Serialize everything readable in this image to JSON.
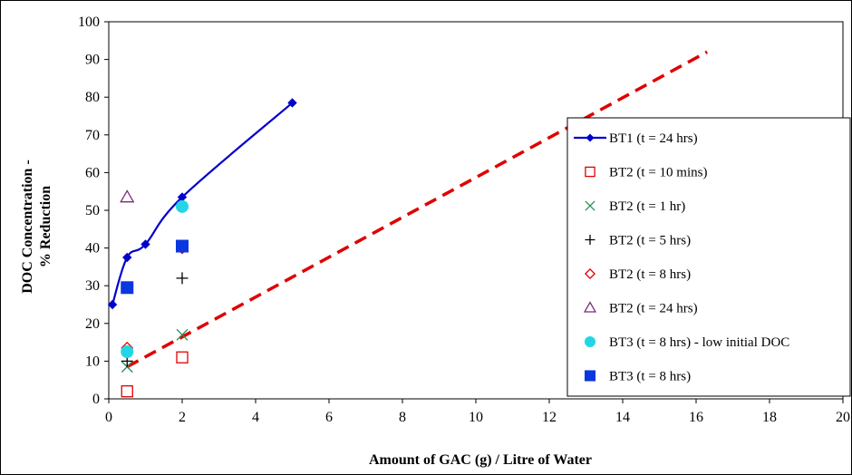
{
  "chart_data": {
    "type": "scatter",
    "title": "",
    "xlabel": "Amount of GAC (g) / Litre of Water",
    "ylabel_lines": [
      "DOC Concentration -",
      "% Reduction"
    ],
    "xlim": [
      0,
      20
    ],
    "ylim": [
      0,
      100
    ],
    "x_ticks": [
      0,
      2,
      4,
      6,
      8,
      10,
      12,
      14,
      16,
      18,
      20
    ],
    "y_ticks": [
      0,
      10,
      20,
      30,
      40,
      50,
      60,
      70,
      80,
      90,
      100
    ],
    "grid": false,
    "legend_position": "right",
    "series": [
      {
        "name": "BT1 (t = 24 hrs)",
        "marker": "diamond-filled",
        "line": "smooth-solid",
        "color": "#0000cc",
        "x": [
          0.1,
          0.5,
          1,
          2,
          5
        ],
        "y": [
          25,
          37.5,
          41,
          53.5,
          78.5
        ]
      },
      {
        "name": "BT2 (t = 10 mins)",
        "marker": "square-open",
        "color": "#e00000",
        "x": [
          0.5,
          2
        ],
        "y": [
          2,
          11
        ]
      },
      {
        "name": "BT2 (t = 1 hr)",
        "marker": "x",
        "color": "#2e8b57",
        "x": [
          0.5,
          2
        ],
        "y": [
          8.5,
          17
        ]
      },
      {
        "name": "BT2 (t = 5 hrs)",
        "marker": "plus",
        "color": "#000000",
        "x": [
          0.5,
          2
        ],
        "y": [
          10,
          32
        ]
      },
      {
        "name": "BT2 (t = 8 hrs)",
        "marker": "diamond-open",
        "color": "#e00000",
        "x": [
          0.5,
          2
        ],
        "y": [
          13.5,
          40
        ]
      },
      {
        "name": "BT2 (t = 24 hrs)",
        "marker": "triangle-open",
        "color": "#7b2a7b",
        "x": [
          0.5
        ],
        "y": [
          53.5
        ]
      },
      {
        "name": "BT3 (t = 8 hrs) - low initial DOC",
        "marker": "circle-filled",
        "color": "#22d6e6",
        "x": [
          0.5,
          2
        ],
        "y": [
          12.5,
          51
        ]
      },
      {
        "name": "BT3 (t = 8 hrs)",
        "marker": "square-filled",
        "color": "#0a37e0",
        "x": [
          0.5,
          2
        ],
        "y": [
          29.5,
          40.5
        ]
      }
    ],
    "trendline": {
      "color": "#e00000",
      "style": "dashed",
      "x": [
        0.5,
        16.3
      ],
      "y": [
        8.5,
        92
      ]
    }
  }
}
